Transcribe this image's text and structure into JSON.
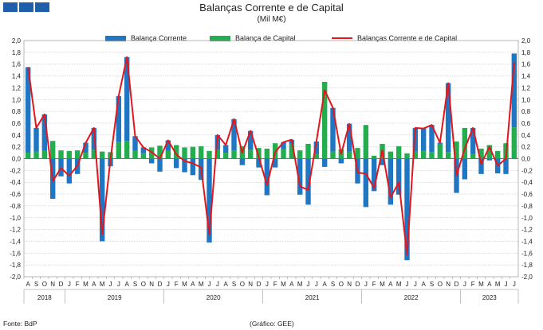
{
  "header": {
    "title": "Balanças Corrente e de Capital",
    "subtitle": "(Mil M€)"
  },
  "footer": {
    "source": "Fonte: BdP",
    "graphic": "(Gráfico: GEE)"
  },
  "colors": {
    "current": "#1f77c4",
    "capital": "#22ad4f",
    "total": "#e3161d",
    "tabs": "#1f5ea8"
  },
  "chart_data": {
    "type": "bar",
    "stacked": true,
    "ylim": [
      -2.0,
      2.0
    ],
    "ytick_step": 0.2,
    "yticks": [
      "2,0",
      "1,8",
      "1,6",
      "1,4",
      "1,2",
      "1,0",
      "0,8",
      "0,6",
      "0,4",
      "0,2",
      "0,0",
      "-0,2",
      "-0,4",
      "-0,6",
      "-0,8",
      "-1,0",
      "-1,2",
      "-1,4",
      "-1,6",
      "-1,8",
      "-2,0"
    ],
    "grid": true,
    "legend_position": "top",
    "months": [
      "A",
      "S",
      "O",
      "N",
      "D",
      "J",
      "F",
      "M",
      "A",
      "M",
      "J",
      "J",
      "A",
      "S",
      "O",
      "N",
      "D",
      "J",
      "F",
      "M",
      "A",
      "M",
      "J",
      "J",
      "A",
      "S",
      "O",
      "N",
      "D",
      "J",
      "F",
      "M",
      "A",
      "M",
      "J",
      "J",
      "A",
      "S",
      "O",
      "N",
      "D",
      "J",
      "F",
      "M",
      "A",
      "M",
      "J",
      "J",
      "A",
      "S",
      "O",
      "N",
      "D",
      "J",
      "F",
      "M",
      "A",
      "M",
      "J",
      "J"
    ],
    "years": [
      {
        "label": "2018",
        "start": 0,
        "end": 5
      },
      {
        "label": "2019",
        "start": 5,
        "end": 17
      },
      {
        "label": "2020",
        "start": 17,
        "end": 29
      },
      {
        "label": "2021",
        "start": 29,
        "end": 41
      },
      {
        "label": "2022",
        "start": 41,
        "end": 53
      },
      {
        "label": "2023",
        "start": 53,
        "end": 60
      }
    ],
    "series": [
      {
        "name": "Balança Corrente",
        "values": [
          1.45,
          0.4,
          0.62,
          -0.68,
          -0.3,
          -0.42,
          -0.26,
          0.17,
          0.37,
          -1.4,
          -0.13,
          0.78,
          1.42,
          0.25,
          0.1,
          -0.08,
          -0.22,
          0.18,
          -0.16,
          -0.23,
          -0.28,
          -0.36,
          -1.42,
          0.25,
          0.13,
          0.53,
          -0.11,
          0.32,
          -0.15,
          -0.62,
          -0.15,
          0.12,
          0.07,
          -0.61,
          -0.78,
          0.21,
          -0.14,
          0.74,
          -0.08,
          0.47,
          -0.42,
          -0.82,
          -0.55,
          -0.11,
          -0.78,
          -0.61,
          -1.72,
          0.4,
          0.38,
          0.46,
          0.02,
          1.17,
          -0.58,
          -0.35,
          0.44,
          -0.26,
          -0.03,
          -0.25,
          -0.26,
          1.25
        ],
        "color": "#1f77c4"
      },
      {
        "name": "Balança de Capital",
        "values": [
          0.1,
          0.12,
          0.13,
          0.3,
          0.14,
          0.13,
          0.14,
          0.1,
          0.15,
          0.12,
          0.11,
          0.28,
          0.3,
          0.13,
          0.09,
          0.19,
          0.22,
          0.13,
          0.23,
          0.19,
          0.2,
          0.21,
          0.13,
          0.15,
          0.1,
          0.14,
          0.21,
          0.15,
          0.18,
          0.17,
          0.26,
          0.16,
          0.25,
          0.14,
          0.25,
          0.08,
          1.3,
          0.12,
          0.16,
          0.12,
          0.18,
          0.57,
          0.05,
          0.25,
          0.12,
          0.21,
          0.09,
          0.12,
          0.13,
          0.11,
          0.25,
          0.11,
          0.29,
          0.52,
          0.08,
          0.17,
          0.23,
          0.13,
          0.26,
          0.53
        ],
        "color": "#22ad4f"
      },
      {
        "name": "Balanças Corrente e de Capital",
        "type": "line",
        "values": [
          1.55,
          0.52,
          0.75,
          -0.38,
          -0.16,
          -0.29,
          -0.12,
          0.27,
          0.52,
          -1.28,
          -0.02,
          1.06,
          1.72,
          0.38,
          0.19,
          0.11,
          0.0,
          0.31,
          0.07,
          -0.04,
          -0.08,
          -0.15,
          -1.29,
          0.4,
          0.23,
          0.67,
          0.1,
          0.47,
          0.03,
          -0.45,
          0.11,
          0.28,
          0.32,
          -0.47,
          -0.53,
          0.29,
          1.16,
          0.86,
          0.08,
          0.59,
          -0.24,
          -0.25,
          -0.5,
          0.14,
          -0.66,
          -0.4,
          -1.63,
          0.52,
          0.51,
          0.57,
          0.27,
          1.28,
          -0.29,
          0.17,
          0.52,
          -0.09,
          0.2,
          -0.12,
          0.0,
          1.63
        ],
        "color": "#e3161d"
      }
    ]
  }
}
